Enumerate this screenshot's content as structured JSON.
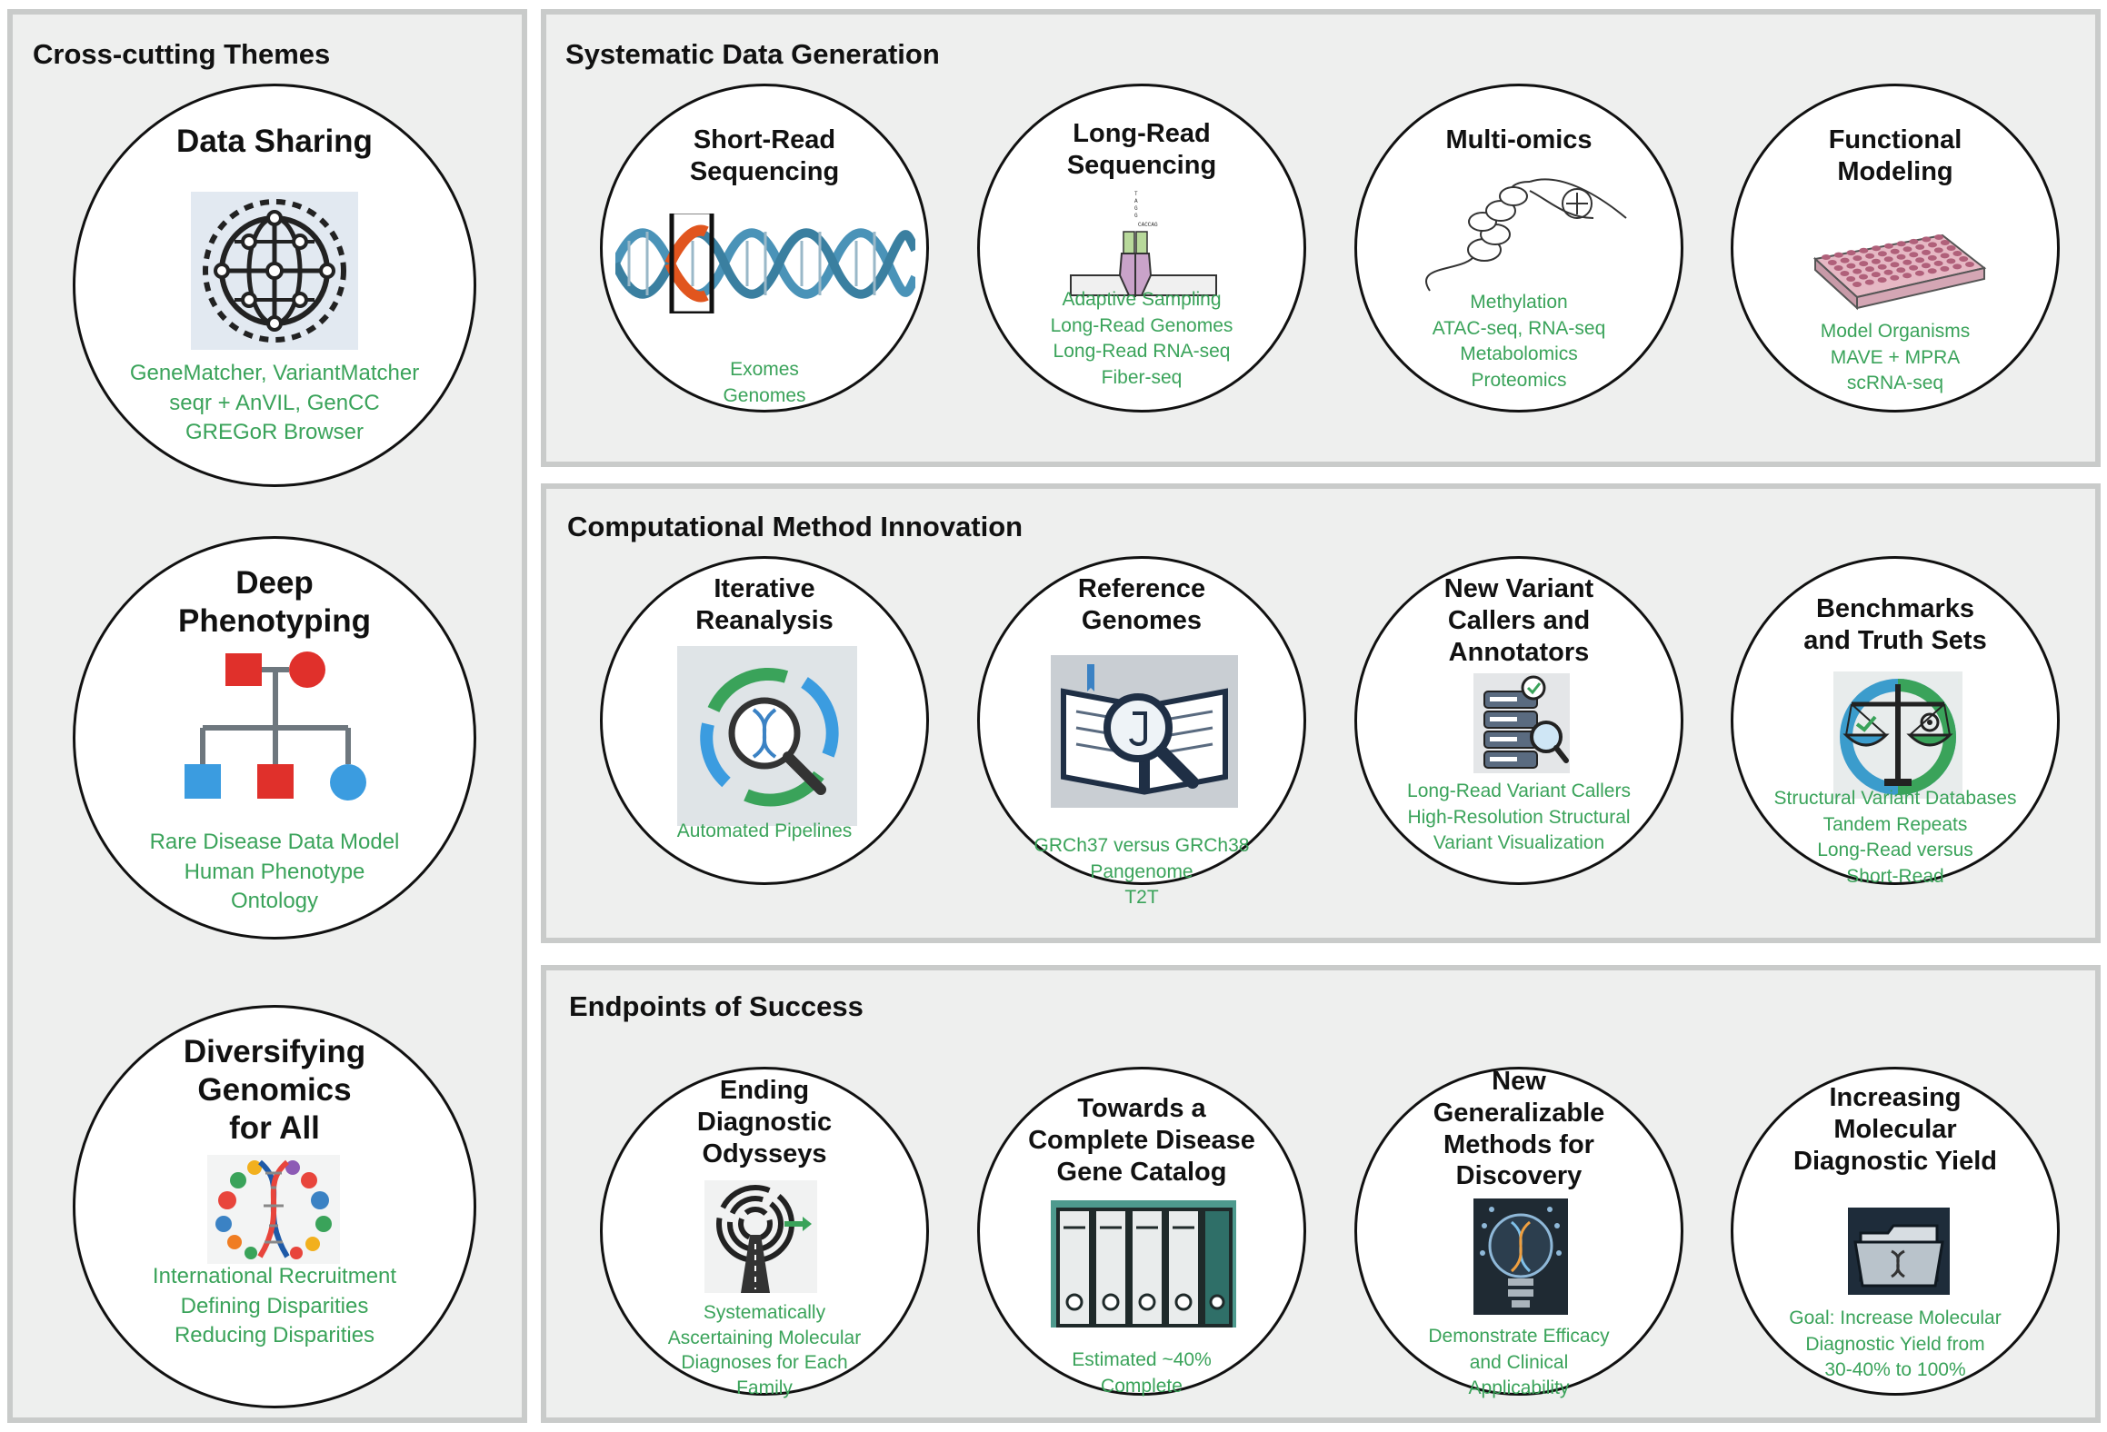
{
  "cross_cutting": {
    "title": "Cross-cutting Themes",
    "items": [
      {
        "title": "Data Sharing",
        "text": "GeneMatcher, VariantMatcher\nseqr + AnVIL, GenCC\nGREGoR Browser",
        "icon": "globe-network-icon"
      },
      {
        "title": "Deep\nPhenotyping",
        "text": "Rare Disease Data Model\nHuman Phenotype\nOntology",
        "icon": "pedigree-icon"
      },
      {
        "title": "Diversifying\nGenomics\nfor All",
        "text": "International Recruitment\nDefining Disparities\nReducing Disparities",
        "icon": "dna-people-icon"
      }
    ]
  },
  "systematic": {
    "title": "Systematic Data Generation",
    "items": [
      {
        "title": "Short-Read\nSequencing",
        "text": "Exomes\nGenomes",
        "icon": "dna-helix-icon"
      },
      {
        "title": "Long-Read\nSequencing",
        "text": "Adaptive Sampling\nLong-Read Genomes\nLong-Read RNA-seq\nFiber-seq",
        "icon": "nanopore-icon"
      },
      {
        "title": "Multi-omics",
        "text": "Methylation\nATAC-seq, RNA-seq\nMetabolomics\nProteomics",
        "icon": "chromatin-icon"
      },
      {
        "title": "Functional\nModeling",
        "text": "Model Organisms\nMAVE + MPRA\nscRNA-seq",
        "icon": "well-plate-icon"
      }
    ]
  },
  "computational": {
    "title": "Computational Method Innovation",
    "items": [
      {
        "title": "Iterative\nReanalysis",
        "text": "Automated Pipelines",
        "icon": "reanalysis-cycle-icon"
      },
      {
        "title": "Reference\nGenomes",
        "text": "GRCh37 versus GRCh38\nPangenome\nT2T",
        "icon": "book-magnifier-icon"
      },
      {
        "title": "New Variant\nCallers and\nAnnotators",
        "text": "Long-Read Variant Callers\nHigh-Resolution Structural\nVariant Visualization",
        "icon": "database-check-icon"
      },
      {
        "title": "Benchmarks\nand Truth Sets",
        "text": "Structural Variant Databases\nTandem Repeats\nLong-Read versus\nShort-Read",
        "icon": "balance-scale-icon"
      }
    ]
  },
  "endpoints": {
    "title": "Endpoints of Success",
    "items": [
      {
        "title": "Ending\nDiagnostic\nOdysseys",
        "text": "Systematically\nAscertaining Molecular\nDiagnoses for Each\nFamily",
        "icon": "maze-road-icon"
      },
      {
        "title": "Towards a\nComplete Disease\nGene Catalog",
        "text": "Estimated ~40%\nComplete",
        "icon": "binders-icon"
      },
      {
        "title": "New\nGeneralizable\nMethods for\nDiscovery",
        "text": "Demonstrate Efficacy\nand Clinical\nApplicability",
        "icon": "lightbulb-dna-icon"
      },
      {
        "title": "Increasing\nMolecular\nDiagnostic Yield",
        "text": "Goal: Increase Molecular\nDiagnostic Yield from\n30-40% to 100%",
        "icon": "folder-dna-icon"
      }
    ]
  }
}
